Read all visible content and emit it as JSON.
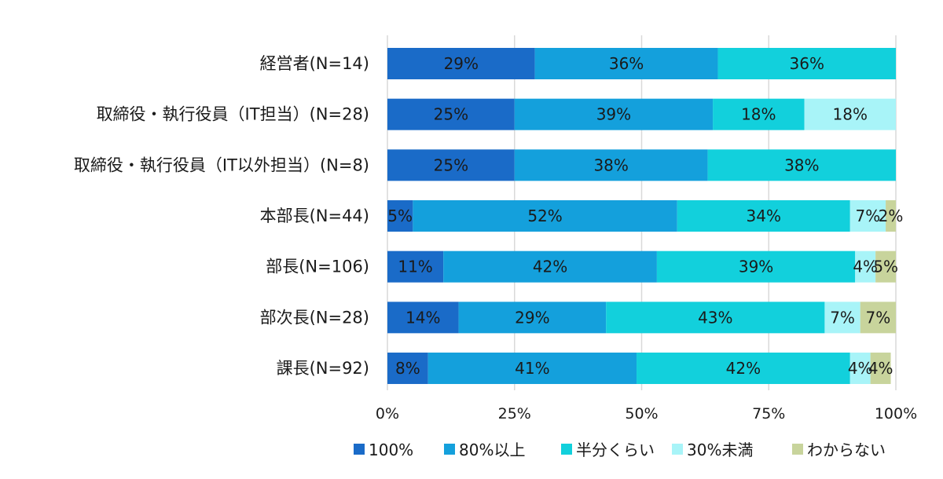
{
  "chart_data": {
    "type": "bar",
    "orientation": "horizontal",
    "stacked": true,
    "categories": [
      "経営者(N=14)",
      "取締役・執行役員（IT担当）(N=28)",
      "取締役・執行役員（IT以外担当）(N=8)",
      "本部長(N=44)",
      "部長(N=106)",
      "部次長(N=28)",
      "課長(N=92)"
    ],
    "series": [
      {
        "name": "100%",
        "color": "#1a6bc8",
        "values": [
          29,
          25,
          25,
          5,
          11,
          14,
          8
        ]
      },
      {
        "name": "80%以上",
        "color": "#14a0dc",
        "values": [
          36,
          39,
          38,
          52,
          42,
          29,
          41
        ]
      },
      {
        "name": "半分くらい",
        "color": "#12d0dc",
        "values": [
          36,
          18,
          38,
          34,
          39,
          43,
          42
        ]
      },
      {
        "name": "30%未満",
        "color": "#a8f4f8",
        "values": [
          0,
          18,
          0,
          7,
          4,
          7,
          4
        ]
      },
      {
        "name": "わからない",
        "color": "#c8d49c",
        "values": [
          0,
          0,
          0,
          2,
          5,
          7,
          4
        ]
      }
    ],
    "xlim": [
      0,
      100
    ],
    "x_ticks": [
      "0%",
      "25%",
      "50%",
      "75%",
      "100%"
    ],
    "grid": true,
    "legend_position": "bottom"
  }
}
